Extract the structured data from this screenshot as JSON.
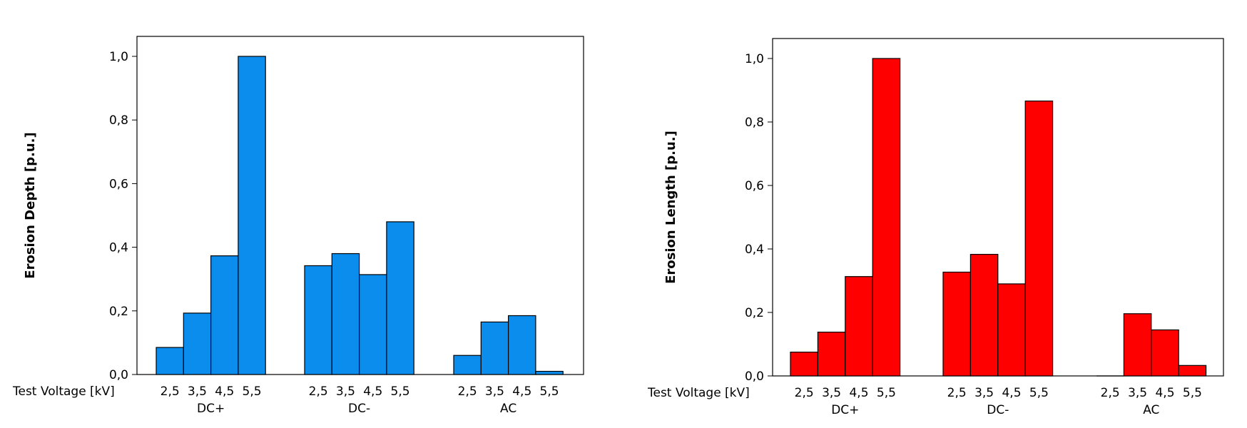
{
  "chart_data": [
    {
      "type": "bar",
      "ylabel": "Erosion Depth [p.u.]",
      "xlabel": "Test Voltage [kV]",
      "ylim": [
        0,
        1.05
      ],
      "yticks": [
        "0,0",
        "0,2",
        "0,4",
        "0,6",
        "0,8",
        "1,0"
      ],
      "ytick_values": [
        0,
        0.2,
        0.4,
        0.6,
        0.8,
        1.0
      ],
      "groups": [
        {
          "name": "DC+",
          "categories": [
            "2,5",
            "3,5",
            "4,5",
            "5,5"
          ],
          "values": [
            0.085,
            0.193,
            0.373,
            1.0
          ]
        },
        {
          "name": "DC-",
          "categories": [
            "2,5",
            "3,5",
            "4,5",
            "5,5"
          ],
          "values": [
            0.342,
            0.38,
            0.314,
            0.48
          ]
        },
        {
          "name": "AC",
          "categories": [
            "2,5",
            "3,5",
            "4,5",
            "5,5"
          ],
          "values": [
            0.06,
            0.165,
            0.185,
            0.01
          ]
        }
      ],
      "bar_color": "#0a8ded",
      "grid": false
    },
    {
      "type": "bar",
      "ylabel": "Erosion Length [p.u.]",
      "xlabel": "Test Voltage [kV]",
      "ylim": [
        0,
        1.07
      ],
      "yticks": [
        "0,0",
        "0,2",
        "0,4",
        "0,6",
        "0,8",
        "1,0"
      ],
      "ytick_values": [
        0,
        0.2,
        0.4,
        0.6,
        0.8,
        1.0
      ],
      "groups": [
        {
          "name": "DC+",
          "categories": [
            "2,5",
            "3,5",
            "4,5",
            "5,5"
          ],
          "values": [
            0.075,
            0.138,
            0.313,
            1.0
          ]
        },
        {
          "name": "DC-",
          "categories": [
            "2,5",
            "3,5",
            "4,5",
            "5,5"
          ],
          "values": [
            0.327,
            0.383,
            0.29,
            0.866
          ]
        },
        {
          "name": "AC",
          "categories": [
            "2,5",
            "3,5",
            "4,5",
            "5,5"
          ],
          "values": [
            0.0,
            0.196,
            0.145,
            0.033
          ]
        }
      ],
      "bar_color": "#ff0000",
      "grid": false
    }
  ]
}
